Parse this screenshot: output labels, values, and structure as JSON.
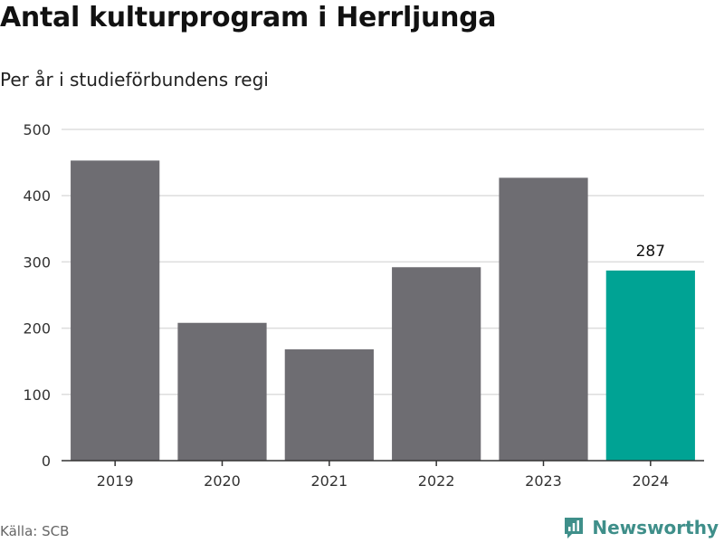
{
  "header": {
    "title": "Antal kulturprogram i Herrljunga",
    "subtitle": "Per år i studieförbundens regi"
  },
  "footer": {
    "source": "Källa: SCB",
    "brand": "Newsworthy",
    "brand_icon": "newsworthy-logo-icon",
    "brand_color": "#3f8f8a"
  },
  "chart_data": {
    "type": "bar",
    "title": "Antal kulturprogram i Herrljunga",
    "subtitle": "Per år i studieförbundens regi",
    "categories": [
      "2019",
      "2020",
      "2021",
      "2022",
      "2023",
      "2024"
    ],
    "values": [
      453,
      208,
      168,
      292,
      427,
      287
    ],
    "data_labels": [
      null,
      null,
      null,
      null,
      null,
      "287"
    ],
    "highlight_index": 5,
    "ylim": [
      0,
      500
    ],
    "yticks": [
      0,
      100,
      200,
      300,
      400,
      500
    ],
    "grid": true,
    "legend": "none",
    "colors": {
      "bar": "#6e6d72",
      "highlight": "#00a394",
      "grid": "#dddddd",
      "axis": "#333333",
      "tick_text": "#333333"
    }
  }
}
